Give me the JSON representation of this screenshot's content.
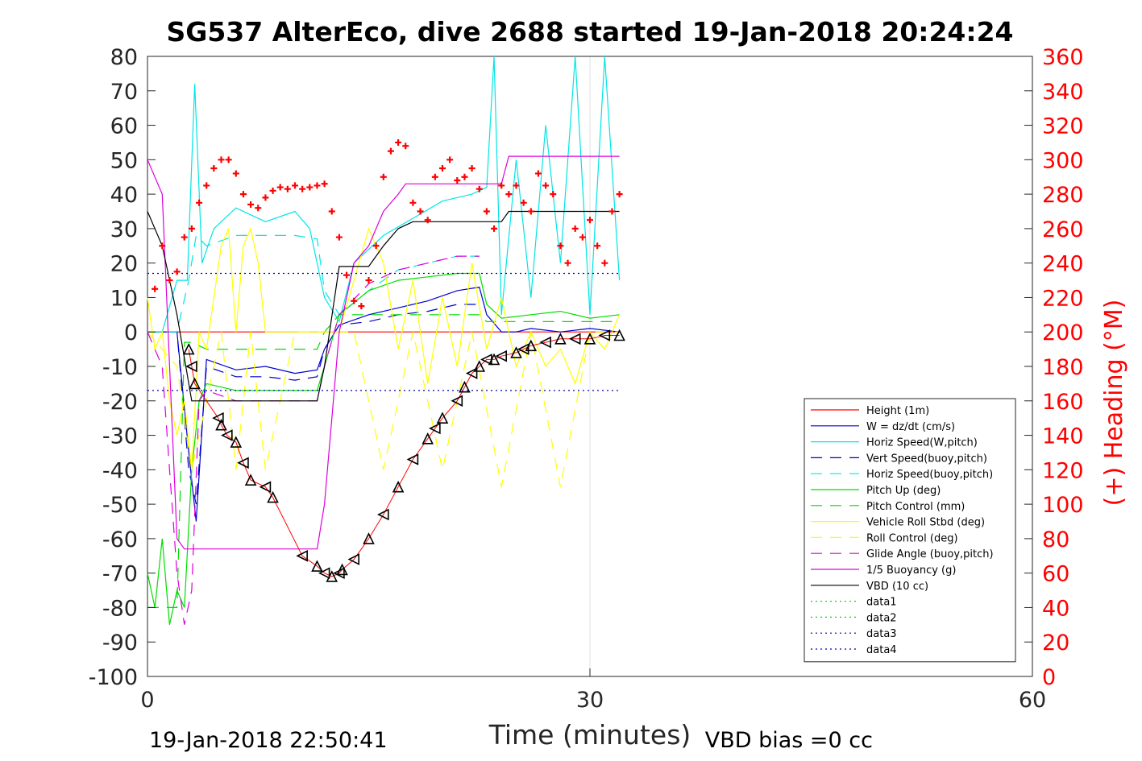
{
  "chart_data": {
    "type": "line",
    "title": "SG537 AlterEco, dive 2688 started 19-Jan-2018 20:24:24",
    "xlabel": "Time (minutes)",
    "ylabel": "",
    "y2label": "(+) Heading (°M)",
    "xlim": [
      0,
      60
    ],
    "ylim": [
      -100,
      80
    ],
    "y2lim": [
      0,
      360
    ],
    "xticks": [
      "0",
      "30",
      "60"
    ],
    "yticks": [
      "80",
      "70",
      "60",
      "50",
      "40",
      "30",
      "20",
      "10",
      "0",
      "-10",
      "-20",
      "-30",
      "-40",
      "-50",
      "-60",
      "-70",
      "-80",
      "-90",
      "-100"
    ],
    "y2ticks": [
      "360",
      "340",
      "320",
      "300",
      "280",
      "260",
      "240",
      "220",
      "200",
      "180",
      "160",
      "140",
      "120",
      "100",
      "80",
      "60",
      "40",
      "20",
      "0"
    ],
    "grid": "x-only",
    "legend_position": "bottom-right",
    "footer_left": "19-Jan-2018 22:50:41",
    "footer_right": "VBD bias =0 cc",
    "colors": {
      "height": "#ff0000",
      "w": "#0000cd",
      "horiz": "#00e5e5",
      "pitch": "#00dd00",
      "roll": "#ffff00",
      "glide": "#dd00dd",
      "vbd": "#000000",
      "heading": "#ff0000",
      "ref": "#0000aa"
    },
    "series": [
      {
        "name": "Height (1m)",
        "key": "height",
        "style": "solid",
        "x": [
          0,
          1,
          2,
          3,
          4,
          5,
          6,
          7,
          8,
          9,
          10,
          11,
          12,
          13,
          14,
          15,
          16,
          17,
          18,
          19,
          20,
          21,
          22,
          23,
          24,
          25,
          26,
          27,
          28,
          29,
          30,
          31,
          32
        ],
        "y": [
          0,
          0,
          0,
          0,
          0,
          0,
          0,
          0,
          0,
          0,
          0,
          0,
          0,
          0,
          0,
          0,
          0,
          0,
          0,
          0,
          0,
          0,
          0,
          0,
          0,
          0,
          0,
          0,
          0,
          0,
          0,
          0,
          0
        ]
      },
      {
        "name": "W = dz/dt (cm/s)",
        "key": "w",
        "style": "solid",
        "x": [
          0,
          1,
          2,
          2.8,
          3.3,
          4,
          6,
          8,
          10,
          11.5,
          12,
          13,
          15,
          17,
          19,
          21,
          22.5,
          23,
          24,
          25,
          26,
          28,
          30,
          32
        ],
        "y": [
          0,
          0,
          0,
          -35,
          -55,
          -8,
          -11,
          -10,
          -12,
          -11,
          -5,
          2,
          5,
          7,
          9,
          12,
          13,
          5,
          0,
          0,
          1,
          0,
          1,
          0
        ]
      },
      {
        "name": "Horiz Speed(W,pitch)",
        "key": "horiz",
        "style": "solid",
        "x": [
          0,
          1,
          2,
          2.7,
          3.2,
          3.7,
          4.5,
          6,
          8,
          10,
          11,
          12,
          13,
          14,
          16,
          18,
          20,
          22,
          23,
          23.5,
          24,
          25,
          26,
          27,
          28,
          29,
          30,
          31,
          32
        ],
        "y": [
          0,
          0,
          15,
          15,
          72,
          20,
          30,
          36,
          32,
          35,
          30,
          10,
          3,
          20,
          28,
          33,
          38,
          40,
          42,
          80,
          5,
          50,
          10,
          60,
          20,
          80,
          5,
          80,
          15
        ]
      },
      {
        "name": "Vert Speed(buoy,pitch)",
        "key": "w",
        "style": "dashed",
        "x": [
          0,
          2,
          2.8,
          3.3,
          4,
          6,
          8,
          10,
          11.5,
          12,
          13,
          15,
          17,
          19,
          21,
          22.5
        ],
        "y": [
          0,
          0,
          -40,
          -50,
          -10,
          -13,
          -13,
          -14,
          -13,
          -5,
          2,
          3,
          5,
          6,
          8,
          8
        ]
      },
      {
        "name": "Horiz Speed(buoy,pitch)",
        "key": "horiz",
        "style": "dashed",
        "x": [
          0,
          2,
          2.8,
          3.3,
          4,
          6,
          8,
          10,
          11.5,
          12,
          13,
          15,
          17,
          19,
          21,
          22.5
        ],
        "y": [
          0,
          0,
          15,
          28,
          25,
          28,
          28,
          28,
          27,
          12,
          5,
          12,
          18,
          20,
          22,
          22
        ]
      },
      {
        "name": "Pitch Up (deg)",
        "key": "pitch",
        "style": "solid",
        "x": [
          0,
          0.5,
          1,
          1.5,
          2,
          2.5,
          3,
          3.5,
          4,
          6,
          8,
          10,
          11.5,
          12,
          13,
          15,
          17,
          19,
          21,
          22.5,
          23,
          24,
          26,
          28,
          30,
          32
        ],
        "y": [
          -70,
          -80,
          -60,
          -85,
          -75,
          -80,
          -40,
          -20,
          -15,
          -17,
          -17,
          -17,
          -17,
          -10,
          5,
          12,
          15,
          16,
          17,
          17,
          8,
          4,
          5,
          6,
          4,
          5
        ]
      },
      {
        "name": "Pitch Control (mm)",
        "key": "pitch",
        "style": "dashed",
        "x": [
          0,
          1,
          2,
          2.5,
          3,
          4,
          6,
          8,
          10,
          11.5,
          12,
          13,
          15,
          17,
          19,
          21,
          22.5,
          23,
          32
        ],
        "y": [
          -80,
          -80,
          -80,
          -3,
          -3,
          -5,
          -5,
          -5,
          -5,
          -5,
          0,
          5,
          5,
          5,
          5,
          5,
          5,
          3,
          3
        ]
      },
      {
        "name": "Vehicle Roll Stbd (deg)",
        "key": "roll",
        "style": "solid",
        "x": [
          0,
          0.5,
          1,
          1.5,
          2,
          2.5,
          3,
          3.5,
          4,
          4.5,
          5,
          5.5,
          6,
          6.5,
          7,
          7.5,
          8,
          9,
          10,
          11,
          12,
          13,
          14,
          15,
          16,
          17,
          18,
          19,
          20,
          21,
          22,
          23,
          24,
          25,
          26,
          27,
          28,
          29,
          30,
          31,
          32
        ],
        "y": [
          10,
          -5,
          0,
          -20,
          -30,
          -20,
          -40,
          0,
          -5,
          10,
          25,
          30,
          0,
          25,
          30,
          20,
          0,
          0,
          0,
          0,
          0,
          0,
          15,
          30,
          20,
          -5,
          15,
          -15,
          10,
          -10,
          20,
          -5,
          10,
          -10,
          0,
          -10,
          -5,
          -15,
          0,
          -5,
          5
        ]
      },
      {
        "name": "Roll Control (deg)",
        "key": "roll",
        "style": "dashed",
        "x": [
          0,
          2,
          3,
          5,
          6,
          7,
          8,
          10,
          12,
          14,
          16,
          18,
          20,
          22,
          24,
          26,
          28,
          30,
          32
        ],
        "y": [
          0,
          -10,
          -40,
          0,
          -40,
          0,
          -40,
          0,
          0,
          0,
          -40,
          0,
          -40,
          0,
          -45,
          0,
          -45,
          0,
          0
        ]
      },
      {
        "name": "Glide Angle (buoy,pitch)",
        "key": "glide",
        "style": "dashed",
        "x": [
          0,
          1,
          1.5,
          2,
          2.5,
          3,
          3.5,
          4,
          6,
          8,
          10,
          11.5,
          12,
          13,
          15,
          17,
          19,
          21,
          22.5
        ],
        "y": [
          0,
          -10,
          -40,
          -70,
          -85,
          -75,
          -20,
          -17,
          -20,
          -20,
          -20,
          -20,
          -10,
          5,
          14,
          18,
          20,
          22,
          22
        ]
      },
      {
        "name": "1/5 Buoyancy (g)",
        "key": "glide",
        "style": "solid",
        "x": [
          0,
          1,
          2,
          2.5,
          3,
          3.5,
          4,
          6,
          8,
          10,
          11.5,
          12,
          12.5,
          13,
          14,
          15,
          16,
          17,
          17.5,
          20,
          24,
          24.5,
          25,
          32
        ],
        "y": [
          50,
          40,
          -60,
          -63,
          -63,
          -63,
          -63,
          -63,
          -63,
          -63,
          -63,
          -50,
          -25,
          0,
          20,
          25,
          35,
          40,
          43,
          43,
          43,
          51,
          51,
          51
        ]
      },
      {
        "name": "VBD (10 cc)",
        "key": "vbd",
        "style": "solid",
        "x": [
          0,
          1,
          2,
          3,
          3.3,
          4,
          6,
          8,
          10,
          11.5,
          12,
          13,
          14,
          15,
          16,
          17,
          17.5,
          18,
          20,
          24,
          24.5,
          25,
          32
        ],
        "y": [
          35,
          25,
          5,
          -20,
          -20,
          -20,
          -20,
          -20,
          -20,
          -20,
          -10,
          19,
          19,
          19,
          25,
          30,
          31,
          32,
          32,
          32,
          35,
          35,
          35
        ]
      },
      {
        "name": "data1",
        "key": "pitch",
        "style": "dotted",
        "x": [],
        "y": []
      },
      {
        "name": "data2",
        "key": "pitch",
        "style": "dotted",
        "x": [],
        "y": []
      },
      {
        "name": "data3",
        "key": "ref",
        "style": "dotted",
        "x": [
          0,
          32
        ],
        "y": [
          17,
          17
        ]
      },
      {
        "name": "data4",
        "key": "ref",
        "style": "dotted",
        "x": [
          0,
          32
        ],
        "y": [
          -17,
          -17
        ]
      }
    ],
    "depth_track": {
      "x": [
        2.8,
        3.0,
        3.2,
        4.8,
        5.0,
        5.4,
        6.0,
        6.5,
        7.0,
        8.0,
        8.5,
        10.5,
        11.5,
        12.0,
        12.5,
        13.0,
        13.2,
        14.0,
        15.0,
        16.0,
        17.0,
        18.0,
        19.0,
        19.5,
        20.0,
        21.0,
        21.5,
        22.0,
        22.5,
        23.0,
        23.5,
        24.0,
        25.0,
        25.5,
        26.0,
        27.0,
        28.0,
        29.0,
        30.0,
        31.0,
        32.0
      ],
      "y": [
        -5,
        -10,
        -15,
        -25,
        -27,
        -30,
        -32,
        -38,
        -43,
        -45,
        -48,
        -65,
        -68,
        -70,
        -71,
        -70,
        -69,
        -66,
        -60,
        -53,
        -45,
        -37,
        -31,
        -28,
        -25,
        -20,
        -16,
        -12,
        -10,
        -8,
        -8,
        -7,
        -6,
        -5,
        -4,
        -3,
        -2,
        -2,
        -2,
        -1,
        -1
      ]
    },
    "heading_series": {
      "name": "Heading",
      "key": "heading",
      "x": [
        0.5,
        1,
        1.5,
        2,
        2.5,
        3,
        3.5,
        4,
        4.5,
        5,
        5.5,
        6,
        6.5,
        7,
        7.5,
        8,
        8.5,
        9,
        9.5,
        10,
        10.5,
        11,
        11.5,
        12,
        12.5,
        13,
        13.5,
        14,
        14.5,
        15,
        15.5,
        16,
        16.5,
        17,
        17.5,
        18,
        18.5,
        19,
        19.5,
        20,
        20.5,
        21,
        21.5,
        22,
        22.5,
        23,
        23.5,
        24,
        24.5,
        25,
        25.5,
        26,
        26.5,
        27,
        27.5,
        28,
        28.5,
        29,
        29.5,
        30,
        30.5,
        31,
        31.5,
        32
      ],
      "y": [
        225,
        250,
        230,
        235,
        255,
        260,
        275,
        285,
        295,
        300,
        300,
        292,
        280,
        274,
        272,
        278,
        282,
        284,
        283,
        285,
        283,
        284,
        285,
        286,
        270,
        255,
        233,
        218,
        215,
        230,
        250,
        290,
        305,
        310,
        308,
        275,
        270,
        265,
        290,
        295,
        300,
        288,
        290,
        295,
        283,
        270,
        260,
        285,
        280,
        285,
        275,
        270,
        292,
        285,
        280,
        250,
        240,
        260,
        255,
        265,
        250,
        240,
        270,
        280
      ]
    }
  }
}
